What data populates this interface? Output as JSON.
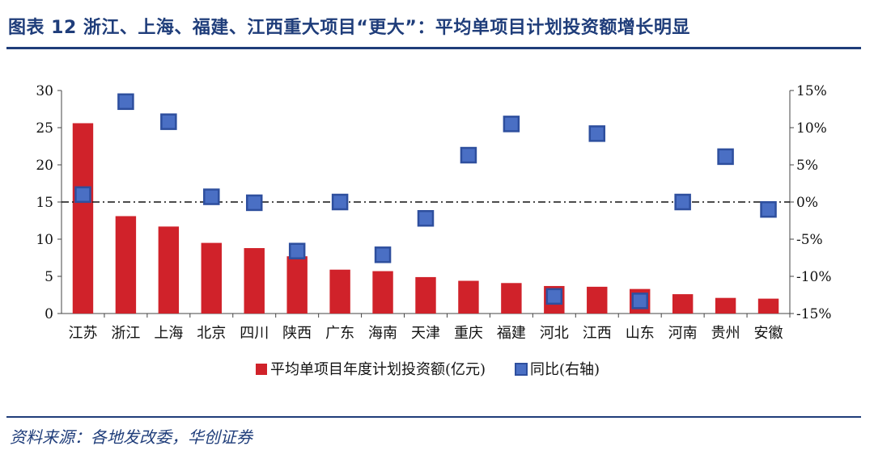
{
  "header": {
    "title": "图表 12   浙江、上海、福建、江西重大项目“更大”：平均单项目计划投资额增长明显"
  },
  "footer": {
    "source": "资料来源：各地发改委，华创证券"
  },
  "colors": {
    "bar": "#d0222a",
    "marker": "#4a6fc4",
    "marker_border": "#2e4f9e",
    "axis": "#444444",
    "zero_line": "#111111",
    "rule": "#1f3d7a"
  },
  "chart_data": {
    "type": "bar",
    "categories": [
      "江苏",
      "浙江",
      "上海",
      "北京",
      "四川",
      "陕西",
      "广东",
      "海南",
      "天津",
      "重庆",
      "福建",
      "河北",
      "江西",
      "山东",
      "河南",
      "贵州",
      "安徽"
    ],
    "series": [
      {
        "name": "平均单项目年度计划投资额(亿元)",
        "type": "bar",
        "axis": "left",
        "values": [
          25.6,
          13.1,
          11.7,
          9.5,
          8.8,
          7.7,
          5.9,
          5.7,
          4.9,
          4.4,
          4.1,
          3.7,
          3.6,
          3.3,
          2.6,
          2.1,
          2.0
        ]
      },
      {
        "name": "同比(右轴)",
        "type": "scatter",
        "axis": "right",
        "values": [
          1.0,
          13.5,
          10.8,
          0.7,
          -0.1,
          -6.6,
          0.0,
          -7.1,
          -2.2,
          6.3,
          10.5,
          -12.7,
          9.2,
          -13.3,
          0.0,
          6.1,
          -1.0
        ]
      }
    ],
    "y_left": {
      "min": 0,
      "max": 30,
      "ticks": [
        0,
        5,
        10,
        15,
        20,
        25,
        30
      ]
    },
    "y_right": {
      "min": -15,
      "max": 15,
      "ticks": [
        -15,
        -10,
        -5,
        0,
        5,
        10,
        15
      ],
      "tick_labels": [
        "-15%",
        "-10%",
        "-5%",
        "0%",
        "5%",
        "10%",
        "15%"
      ]
    },
    "reference_line": {
      "axis": "right",
      "value": 0,
      "style": "dash-dot"
    },
    "legend": {
      "position": "bottom-center",
      "items": [
        "平均单项目年度计划投资额(亿元)",
        "同比(右轴)"
      ]
    }
  }
}
